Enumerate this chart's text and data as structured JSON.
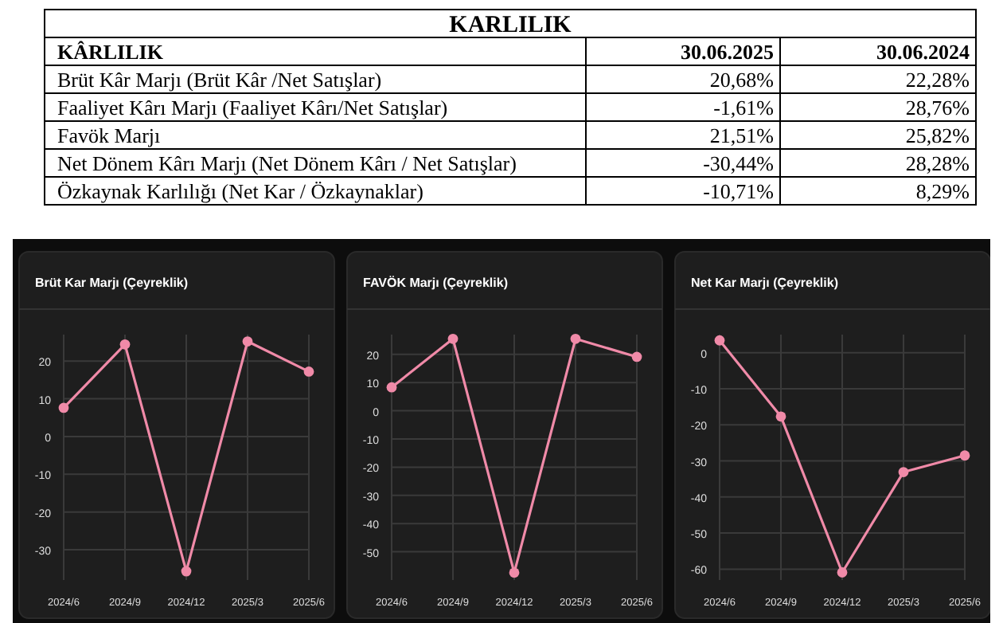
{
  "chart_data": [
    {
      "type": "other",
      "title": "KARLILIK",
      "categories": [
        "KÂRLILIK",
        "30.06.2025",
        "30.06.2024"
      ],
      "y_categories": [
        "Brüt Kâr Marjı (Brüt Kâr /Net Satışlar)",
        "Faaliyet Kârı Marjı (Faaliyet Kârı/Net Satışlar)",
        "Favök Marjı",
        "Net Dönem Kârı Marjı (Net Dönem Kârı / Net Satışlar)",
        "Özkaynak Karlılığı (Net Kar / Özkaynaklar)"
      ],
      "cell_labels": [
        [
          "20,68%",
          "22,28%"
        ],
        [
          "-1,61%",
          "28,76%"
        ],
        [
          "21,51%",
          "25,82%"
        ],
        [
          "-30,44%",
          "28,28%"
        ],
        [
          "-10,71%",
          "8,29%"
        ]
      ]
    },
    {
      "type": "line",
      "title": "Brüt Kar Marjı (Çeyreklik)",
      "categories": [
        "2024/6",
        "2024/9",
        "2024/12",
        "2025/3",
        "2025/6"
      ],
      "series": [
        {
          "color": "#f08aa8",
          "values": [
            7.6,
            24.4,
            -35.7,
            25.2,
            17.2
          ]
        }
      ],
      "ylim": [
        -38,
        27
      ],
      "yticks": [
        -30,
        -20,
        -10,
        0,
        10,
        20
      ],
      "grid": true,
      "marker": "circle"
    },
    {
      "type": "line",
      "title": "FAVÖK Marjı (Çeyreklik)",
      "categories": [
        "2024/6",
        "2024/9",
        "2024/12",
        "2025/3",
        "2025/6"
      ],
      "series": [
        {
          "color": "#f08aa8",
          "values": [
            8.3,
            25.5,
            -57.4,
            25.5,
            19.1
          ]
        }
      ],
      "ylim": [
        -60,
        27
      ],
      "yticks": [
        -50,
        -40,
        -30,
        -20,
        -10,
        0,
        10,
        20
      ],
      "grid": true,
      "marker": "circle"
    },
    {
      "type": "line",
      "title": "Net Kar Marjı (Çeyreklik)",
      "categories": [
        "2024/6",
        "2024/9",
        "2024/12",
        "2025/3",
        "2025/6"
      ],
      "series": [
        {
          "color": "#f08aa8",
          "values": [
            3.4,
            -17.7,
            -60.9,
            -33.1,
            -28.5
          ]
        }
      ],
      "ylim": [
        -63,
        5
      ],
      "yticks": [
        -60,
        -50,
        -40,
        -30,
        -20,
        -10,
        0
      ],
      "grid": true,
      "marker": "circle"
    }
  ]
}
